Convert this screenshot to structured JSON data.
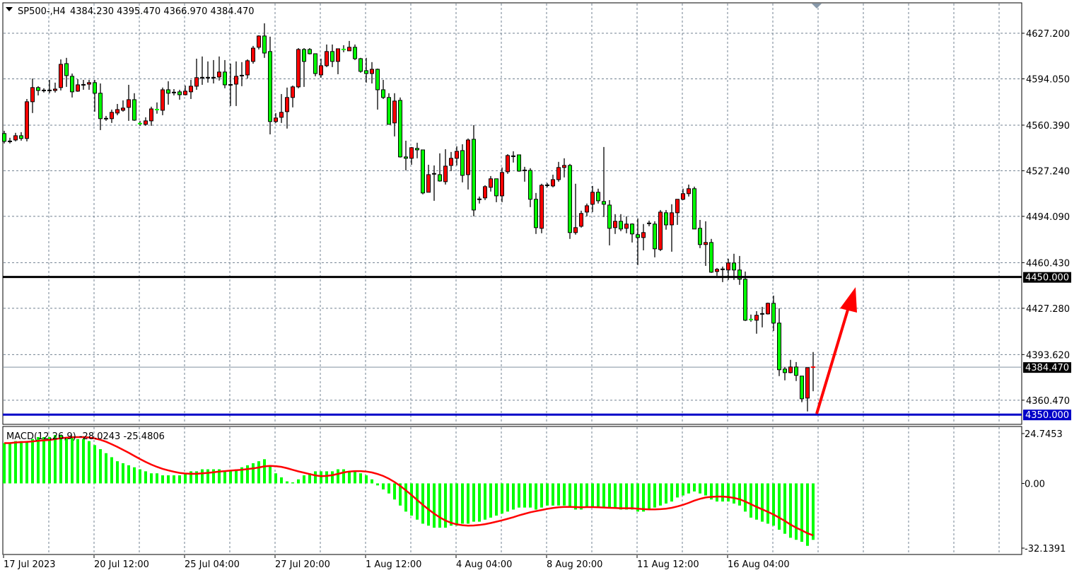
{
  "header": {
    "symbol": "SP500-,H4",
    "ohlc_text": "4384.230 4395.470 4366.970 4384.470"
  },
  "macd_header": {
    "label": "MACD(12,26,9) -28.0243 -25.4806"
  },
  "colors": {
    "bull_candle": "#ff0000",
    "bear_candle": "#00ff00",
    "doji": "#000000",
    "resistance_line": "#000000",
    "support_line": "#0000c8",
    "macd_histogram": "#00ff00",
    "macd_signal": "#ff0000",
    "arrow": "#ff0000",
    "grid": "#708090"
  },
  "price_axis": {
    "ticks": [
      "4627.200",
      "4594.050",
      "4560.390",
      "4527.240",
      "4494.090",
      "4460.430",
      "4427.280",
      "4393.620",
      "4360.470"
    ],
    "tick_values": [
      4627.2,
      4594.05,
      4560.39,
      4527.24,
      4494.09,
      4460.43,
      4427.28,
      4393.62,
      4360.47
    ],
    "level_4450": {
      "value": 4450.0,
      "label": "4450.000"
    },
    "current_price": {
      "value": 4384.47,
      "label": "4384.470"
    },
    "level_4350": {
      "value": 4350.0,
      "label": "4350.000"
    }
  },
  "macd_axis": {
    "ticks": [
      "24.7453",
      "0.00",
      "-32.1391"
    ],
    "tick_values": [
      24.7453,
      0,
      -32.1391
    ]
  },
  "time_axis": {
    "labels": [
      "17 Jul 2023",
      "20 Jul 12:00",
      "25 Jul 04:00",
      "27 Jul 20:00",
      "1 Aug 12:00",
      "4 Aug 04:00",
      "8 Aug 20:00",
      "11 Aug 12:00",
      "16 Aug 04:00"
    ]
  },
  "chart_data": [
    {
      "type": "candlestick",
      "title": "SP500-,H4",
      "ylim": [
        4342.9,
        4649.3
      ],
      "grid": true,
      "horizontal_lines": [
        4450.0,
        4350.0
      ],
      "annotation": "red upward arrow from 4350 toward 4450 after last bar",
      "ohlc": [
        [
          4554.3,
          4556.3,
          4547.1,
          4548.6
        ],
        [
          4548.6,
          4551.2,
          4547.1,
          4548.6
        ],
        [
          4549.6,
          4554.8,
          4548.6,
          4552.7
        ],
        [
          4552.7,
          4555.3,
          4549.1,
          4550.7
        ],
        [
          4550.7,
          4579.4,
          4548.6,
          4577.4
        ],
        [
          4577.4,
          4594.3,
          4569.2,
          4587.7
        ],
        [
          4587.7,
          4588.7,
          4582.0,
          4585.6
        ],
        [
          4585.6,
          4587.2,
          4584.1,
          4585.6
        ],
        [
          4585.6,
          4593.3,
          4583.6,
          4585.6
        ],
        [
          4585.6,
          4591.3,
          4584.1,
          4586.6
        ],
        [
          4587.7,
          4608.2,
          4585.6,
          4604.6
        ],
        [
          4605.1,
          4609.3,
          4588.2,
          4596.4
        ],
        [
          4595.9,
          4597.9,
          4580.5,
          4584.6
        ],
        [
          4585.1,
          4593.8,
          4584.6,
          4589.7
        ],
        [
          4589.7,
          4593.3,
          4586.1,
          4589.7
        ],
        [
          4590.2,
          4593.3,
          4586.1,
          4591.3
        ],
        [
          4591.3,
          4593.3,
          4570.2,
          4583.6
        ],
        [
          4583.6,
          4590.7,
          4556.8,
          4565.1
        ],
        [
          4565.1,
          4567.1,
          4563.5,
          4565.1
        ],
        [
          4565.1,
          4571.7,
          4562.0,
          4569.7
        ],
        [
          4569.2,
          4575.8,
          4567.6,
          4571.7
        ],
        [
          4571.2,
          4578.4,
          4570.2,
          4572.8
        ],
        [
          4573.3,
          4589.7,
          4563.5,
          4578.9
        ],
        [
          4578.9,
          4583.6,
          4563.5,
          4564.0
        ],
        [
          4561.5,
          4563.5,
          4559.9,
          4561.4
        ],
        [
          4561.0,
          4566.1,
          4559.9,
          4563.5
        ],
        [
          4563.5,
          4573.8,
          4559.9,
          4572.2
        ],
        [
          4571.7,
          4576.9,
          4568.7,
          4571.6
        ],
        [
          4571.2,
          4587.7,
          4567.6,
          4586.1
        ],
        [
          4586.1,
          4592.3,
          4575.3,
          4583.6
        ],
        [
          4584.1,
          4586.6,
          4582.0,
          4584.1
        ],
        [
          4584.6,
          4586.1,
          4578.9,
          4582.5
        ],
        [
          4582.5,
          4589.2,
          4582.0,
          4585.1
        ],
        [
          4584.6,
          4593.3,
          4579.4,
          4588.7
        ],
        [
          4588.7,
          4608.7,
          4586.1,
          4594.9
        ],
        [
          4594.9,
          4610.3,
          4589.7,
          4594.9
        ],
        [
          4594.9,
          4606.7,
          4591.3,
          4594.9
        ],
        [
          4594.9,
          4607.7,
          4590.7,
          4594.9
        ],
        [
          4595.4,
          4610.3,
          4592.8,
          4599.0
        ],
        [
          4599.0,
          4607.7,
          4587.2,
          4589.7
        ],
        [
          4589.7,
          4605.1,
          4574.3,
          4589.7
        ],
        [
          4590.2,
          4606.7,
          4574.3,
          4595.9
        ],
        [
          4596.4,
          4606.2,
          4588.7,
          4596.4
        ],
        [
          4596.9,
          4608.2,
          4594.3,
          4607.2
        ],
        [
          4606.7,
          4618.0,
          4605.1,
          4616.4
        ],
        [
          4617.0,
          4625.7,
          4615.4,
          4625.2
        ],
        [
          4625.2,
          4634.4,
          4609.3,
          4612.8
        ],
        [
          4613.9,
          4624.7,
          4553.7,
          4563.0
        ],
        [
          4563.0,
          4569.2,
          4562.0,
          4565.6
        ],
        [
          4566.1,
          4583.0,
          4562.0,
          4569.7
        ],
        [
          4570.2,
          4587.7,
          4557.9,
          4580.5
        ],
        [
          4580.5,
          4589.2,
          4573.3,
          4588.2
        ],
        [
          4588.2,
          4616.4,
          4587.2,
          4615.4
        ],
        [
          4615.4,
          4616.4,
          4588.2,
          4606.7
        ],
        [
          4615.4,
          4616.4,
          4611.8,
          4612.3
        ],
        [
          4612.3,
          4612.3,
          4595.9,
          4597.9
        ],
        [
          4596.9,
          4608.7,
          4594.9,
          4603.6
        ],
        [
          4603.6,
          4619.0,
          4602.6,
          4613.9
        ],
        [
          4613.9,
          4619.0,
          4602.6,
          4606.7
        ],
        [
          4606.7,
          4615.9,
          4597.4,
          4615.9
        ],
        [
          4615.4,
          4618.5,
          4613.4,
          4615.3
        ],
        [
          4614.4,
          4621.6,
          4614.4,
          4617.0
        ],
        [
          4617.0,
          4619.0,
          4607.7,
          4608.7
        ],
        [
          4608.7,
          4609.3,
          4598.5,
          4599.5
        ],
        [
          4600.0,
          4609.3,
          4591.3,
          4597.9
        ],
        [
          4597.9,
          4606.2,
          4590.7,
          4601.0
        ],
        [
          4601.0,
          4601.5,
          4571.7,
          4586.1
        ],
        [
          4586.1,
          4593.3,
          4579.4,
          4580.5
        ],
        [
          4580.5,
          4583.6,
          4561.0,
          4561.0
        ],
        [
          4562.0,
          4583.6,
          4552.2,
          4577.9
        ],
        [
          4578.4,
          4580.5,
          4536.8,
          4537.3
        ],
        [
          4537.3,
          4549.1,
          4527.5,
          4536.3
        ],
        [
          4536.3,
          4544.5,
          4531.6,
          4544.0
        ],
        [
          4543.5,
          4547.6,
          4536.3,
          4542.4
        ],
        [
          4542.4,
          4542.4,
          4510.1,
          4511.1
        ],
        [
          4511.6,
          4531.6,
          4511.6,
          4524.4
        ],
        [
          4525.0,
          4531.1,
          4505.4,
          4525.0
        ],
        [
          4524.4,
          4539.9,
          4519.3,
          4519.8
        ],
        [
          4519.3,
          4542.9,
          4517.2,
          4530.6
        ],
        [
          4531.1,
          4540.9,
          4527.0,
          4536.3
        ],
        [
          4536.3,
          4545.0,
          4531.1,
          4541.4
        ],
        [
          4541.9,
          4546.5,
          4518.8,
          4523.9
        ],
        [
          4524.4,
          4550.7,
          4513.6,
          4549.6
        ],
        [
          4550.1,
          4560.4,
          4494.1,
          4498.7
        ],
        [
          4506.5,
          4508.5,
          4503.4,
          4506.5
        ],
        [
          4507.5,
          4516.7,
          4505.9,
          4515.7
        ],
        [
          4515.2,
          4523.4,
          4512.1,
          4521.4
        ],
        [
          4521.4,
          4521.4,
          4504.4,
          4509.0
        ],
        [
          4509.0,
          4529.6,
          4504.4,
          4526.0
        ],
        [
          4526.5,
          4539.3,
          4525.0,
          4538.3
        ],
        [
          4537.8,
          4541.4,
          4533.2,
          4537.8
        ],
        [
          4538.8,
          4538.8,
          4526.5,
          4527.0
        ],
        [
          4527.5,
          4530.1,
          4519.3,
          4527.5
        ],
        [
          4527.5,
          4529.1,
          4500.8,
          4506.5
        ],
        [
          4506.5,
          4511.1,
          4481.3,
          4485.9
        ],
        [
          4485.4,
          4517.8,
          4481.8,
          4516.7
        ],
        [
          4516.7,
          4518.3,
          4515.2,
          4516.7
        ],
        [
          4516.2,
          4524.4,
          4515.2,
          4520.8
        ],
        [
          4520.8,
          4533.7,
          4519.3,
          4529.6
        ],
        [
          4529.6,
          4536.3,
          4522.4,
          4531.1
        ],
        [
          4531.1,
          4532.2,
          4477.7,
          4482.3
        ],
        [
          4482.3,
          4517.8,
          4480.8,
          4485.9
        ],
        [
          4486.9,
          4498.2,
          4485.9,
          4496.2
        ],
        [
          4497.2,
          4503.4,
          4494.1,
          4501.8
        ],
        [
          4502.9,
          4516.2,
          4497.2,
          4511.6
        ],
        [
          4511.6,
          4514.2,
          4503.4,
          4505.4
        ],
        [
          4504.9,
          4544.5,
          4493.6,
          4502.9
        ],
        [
          4502.3,
          4505.9,
          4473.0,
          4485.4
        ],
        [
          4485.9,
          4495.7,
          4481.3,
          4490.5
        ],
        [
          4490.5,
          4495.7,
          4483.3,
          4484.9
        ],
        [
          4485.4,
          4494.1,
          4481.8,
          4488.5
        ],
        [
          4488.5,
          4489.0,
          4475.1,
          4481.3
        ],
        [
          4480.8,
          4492.6,
          4458.7,
          4478.7
        ],
        [
          4478.7,
          4488.5,
          4469.4,
          4482.3
        ],
        [
          4489.0,
          4491.0,
          4486.9,
          4489.0
        ],
        [
          4488.5,
          4490.5,
          4464.3,
          4470.5
        ],
        [
          4470.0,
          4498.7,
          4468.9,
          4497.2
        ],
        [
          4496.7,
          4498.7,
          4484.4,
          4487.9
        ],
        [
          4487.9,
          4502.9,
          4468.4,
          4496.7
        ],
        [
          4496.7,
          4506.5,
          4487.9,
          4506.5
        ],
        [
          4506.5,
          4514.2,
          4505.9,
          4510.6
        ],
        [
          4510.6,
          4517.2,
          4508.5,
          4514.2
        ],
        [
          4514.2,
          4515.7,
          4484.9,
          4484.9
        ],
        [
          4485.4,
          4491.5,
          4471.0,
          4473.6
        ],
        [
          4473.6,
          4490.5,
          4458.1,
          4475.1
        ],
        [
          4475.1,
          4477.7,
          4453.0,
          4453.5
        ],
        [
          4454.0,
          4456.6,
          4450.9,
          4455.6
        ],
        [
          4455.6,
          4457.6,
          4446.3,
          4455.6
        ],
        [
          4455.1,
          4463.3,
          4447.9,
          4460.2
        ],
        [
          4460.2,
          4466.9,
          4447.9,
          4455.1
        ],
        [
          4455.1,
          4465.3,
          4444.3,
          4448.4
        ],
        [
          4448.4,
          4454.0,
          4418.0,
          4418.6
        ],
        [
          4419.1,
          4422.7,
          4417.5,
          4418.6
        ],
        [
          4418.6,
          4425.2,
          4408.8,
          4422.2
        ],
        [
          4423.2,
          4428.3,
          4413.4,
          4423.2
        ],
        [
          4423.2,
          4431.4,
          4422.7,
          4430.9
        ],
        [
          4430.9,
          4436.5,
          4410.8,
          4416.5
        ],
        [
          4416.5,
          4427.3,
          4378.0,
          4382.6
        ],
        [
          4383.1,
          4384.6,
          4374.9,
          4380.5
        ],
        [
          4380.5,
          4389.8,
          4380.0,
          4384.6
        ],
        [
          4384.6,
          4388.2,
          4374.4,
          4378.5
        ],
        [
          4378.0,
          4378.0,
          4359.0,
          4361.5
        ],
        [
          4362.0,
          4384.1,
          4352.3,
          4384.1
        ],
        [
          4384.23,
          4395.47,
          4366.97,
          4384.47
        ]
      ]
    },
    {
      "type": "bar+line",
      "title": "MACD(12,26,9)",
      "ylim": [
        -32.1391,
        24.7453
      ],
      "signal_period": 9,
      "macd_values": [
        20,
        20,
        21,
        21,
        21,
        22,
        23,
        23,
        23,
        24,
        24,
        23,
        23,
        22,
        22,
        21,
        19,
        17,
        15,
        13,
        11,
        10,
        9,
        8,
        7,
        6,
        5,
        5,
        4,
        4,
        4,
        4,
        5,
        6,
        6,
        7,
        7,
        7,
        7,
        6,
        6,
        7,
        8,
        9,
        10,
        11,
        12,
        9,
        5,
        3,
        1,
        0.5,
        2,
        4,
        5,
        6,
        6,
        6,
        6,
        7,
        7,
        6,
        6,
        5,
        4,
        2,
        -1,
        -3,
        -5,
        -8,
        -11,
        -14,
        -16,
        -18,
        -20,
        -21,
        -22,
        -22,
        -22,
        -21,
        -21,
        -20,
        -20,
        -19,
        -19,
        -18,
        -17,
        -16,
        -15,
        -14,
        -13,
        -12,
        -12,
        -12,
        -13,
        -12,
        -11,
        -11,
        -11,
        -11,
        -12,
        -13,
        -13,
        -12,
        -12,
        -12,
        -12,
        -12,
        -12,
        -13,
        -13,
        -13,
        -14,
        -14,
        -13,
        -12,
        -11,
        -10,
        -9,
        -7,
        -6,
        -5,
        -4,
        -5,
        -6,
        -8,
        -9,
        -9,
        -9,
        -10,
        -11,
        -14,
        -17,
        -18,
        -19,
        -20,
        -21,
        -23,
        -25,
        -27,
        -28,
        -29,
        -31,
        -28.0243
      ]
    }
  ]
}
